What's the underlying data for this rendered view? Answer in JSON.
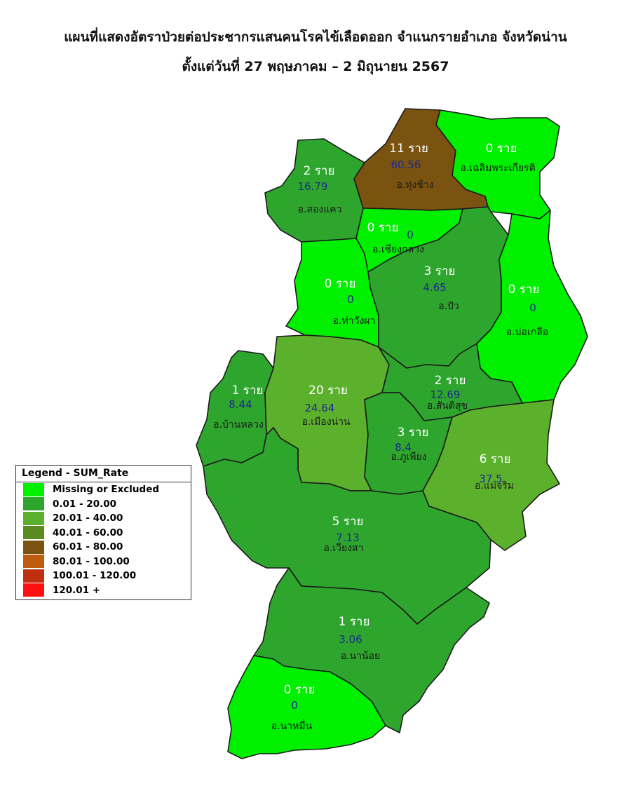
{
  "title_line1": "แผนที่แสดงอัตราป่วยต่อประชากรแสนคนโรคไข้เลือดออก จำแนกรายอำเภอ จังหวัดน่าน",
  "title_line2": "ตั้งแต่วันที่ 27 พฤษภาคม – 2 มิถุนายน 2567",
  "colors": {
    "missing": "#00f000",
    "r0_20": "#2ea62e",
    "r20_40": "#5cb12c",
    "r40_60": "#5a8a20",
    "r60_80": "#7a5310",
    "r80_100": "#c05c10",
    "r100_120": "#c03010",
    "r120_plus": "#ff1010"
  },
  "districts": [
    {
      "name": "อ.ทุ่งช้าง",
      "cases": "11 ราย",
      "rate": "60.56",
      "color": "#7a5310"
    },
    {
      "name": "อ.เฉลิมพระเกียรติ",
      "cases": "0 ราย",
      "rate": "",
      "color": "#00f000"
    },
    {
      "name": "อ.สองแคว",
      "cases": "2 ราย",
      "rate": "16.79",
      "color": "#2ea62e"
    },
    {
      "name": "อ.เชียงกลาง",
      "cases": "0 ราย",
      "rate": "0",
      "color": "#00f000"
    },
    {
      "name": "อ.ปัว",
      "cases": "3 ราย",
      "rate": "4.65",
      "color": "#2ea62e"
    },
    {
      "name": "อ.ท่าวังผา",
      "cases": "0 ราย",
      "rate": "0",
      "color": "#00f000"
    },
    {
      "name": "อ.บ่อเกลือ",
      "cases": "0 ราย",
      "rate": "0",
      "color": "#00f000"
    },
    {
      "name": "อ.บ้านหลวง",
      "cases": "1 ราย",
      "rate": "8.44",
      "color": "#2ea62e"
    },
    {
      "name": "อ.เมืองน่าน",
      "cases": "20 ราย",
      "rate": "24.64",
      "color": "#5cb12c"
    },
    {
      "name": "อ.สันติสุข",
      "cases": "2 ราย",
      "rate": "12.69",
      "color": "#2ea62e"
    },
    {
      "name": "อ.ภูเพียง",
      "cases": "3 ราย",
      "rate": "8.4",
      "color": "#2ea62e"
    },
    {
      "name": "อ.แม่จริม",
      "cases": "6 ราย",
      "rate": "37.5",
      "color": "#5cb12c"
    },
    {
      "name": "อ.เวียงสา",
      "cases": "5 ราย",
      "rate": "7.13",
      "color": "#2ea62e"
    },
    {
      "name": "อ.นาน้อย",
      "cases": "1 ราย",
      "rate": "3.06",
      "color": "#2ea62e"
    },
    {
      "name": "อ.นาหมื่น",
      "cases": "0 ราย",
      "rate": "0",
      "color": "#00f000"
    }
  ],
  "legend": {
    "title": "Legend - SUM_Rate",
    "items": [
      {
        "label": "Missing or Excluded",
        "color": "#00f000"
      },
      {
        "label": "0.01 - 20.00",
        "color": "#2ea62e"
      },
      {
        "label": "20.01 - 40.00",
        "color": "#5cb12c"
      },
      {
        "label": "40.01 - 60.00",
        "color": "#5a8a20"
      },
      {
        "label": "60.01 - 80.00",
        "color": "#7a5310"
      },
      {
        "label": "80.01 - 100.00",
        "color": "#c05c10"
      },
      {
        "label": "100.01 - 120.00",
        "color": "#c03010"
      },
      {
        "label": "120.01 +",
        "color": "#ff1010"
      }
    ]
  }
}
